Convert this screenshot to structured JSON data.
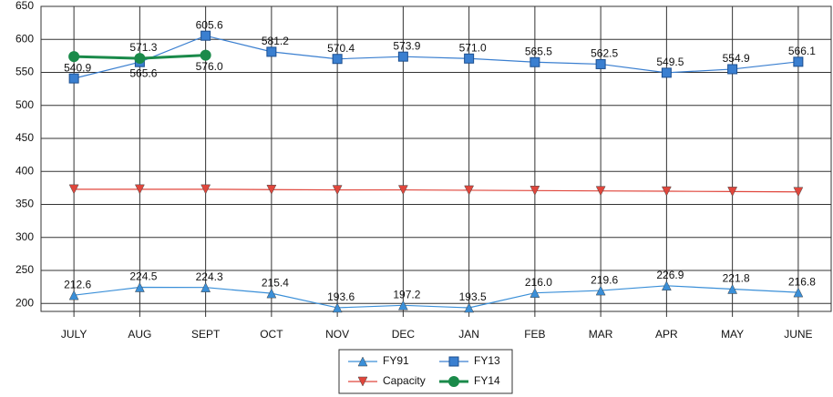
{
  "chart_data": {
    "type": "line",
    "categories": [
      "JULY",
      "AUG",
      "SEPT",
      "OCT",
      "NOV",
      "DEC",
      "JAN",
      "FEB",
      "MAR",
      "APR",
      "MAY",
      "JUNE"
    ],
    "series": [
      {
        "name": "FY91",
        "color": "#3a8fd8",
        "marker": "triangle-up",
        "values": [
          212.6,
          224.5,
          224.3,
          215.4,
          193.6,
          197.2,
          193.5,
          216.0,
          219.6,
          226.9,
          221.8,
          216.8
        ],
        "value_labels": [
          "212.6",
          "224.5",
          "224.3",
          "215.4",
          "193.6",
          "197.2",
          "193.5",
          "216.0",
          "219.6",
          "226.9",
          "221.8",
          "216.8"
        ]
      },
      {
        "name": "FY13",
        "color": "#3a7fd0",
        "marker": "square",
        "values": [
          540.9,
          565.6,
          605.6,
          581.2,
          570.4,
          573.9,
          571.0,
          565.5,
          562.5,
          549.5,
          554.9,
          566.1
        ],
        "value_labels": [
          "540.9",
          "565.6",
          "605.6",
          "581.2",
          "570.4",
          "573.9",
          "571.0",
          "565.5",
          "562.5",
          "549.5",
          "554.9",
          "566.1"
        ]
      },
      {
        "name": "Capacity",
        "color": "#e0463c",
        "marker": "triangle-down",
        "values": [
          373,
          373,
          373,
          372.5,
          372,
          372,
          371.5,
          371,
          370.5,
          370,
          369.5,
          369
        ]
      },
      {
        "name": "FY14",
        "color": "#1a8a4a",
        "marker": "circle",
        "values": [
          574,
          571.3,
          576.0,
          null,
          null,
          null,
          null,
          null,
          null,
          null,
          null,
          null
        ],
        "value_labels": [
          null,
          "571.3",
          "576.0",
          null,
          null,
          null,
          null,
          null,
          null,
          null,
          null,
          null
        ]
      }
    ],
    "ylim": [
      188,
      650
    ],
    "yticks": [
      200,
      250,
      300,
      350,
      400,
      450,
      500,
      550,
      600,
      650
    ],
    "grid": true
  }
}
